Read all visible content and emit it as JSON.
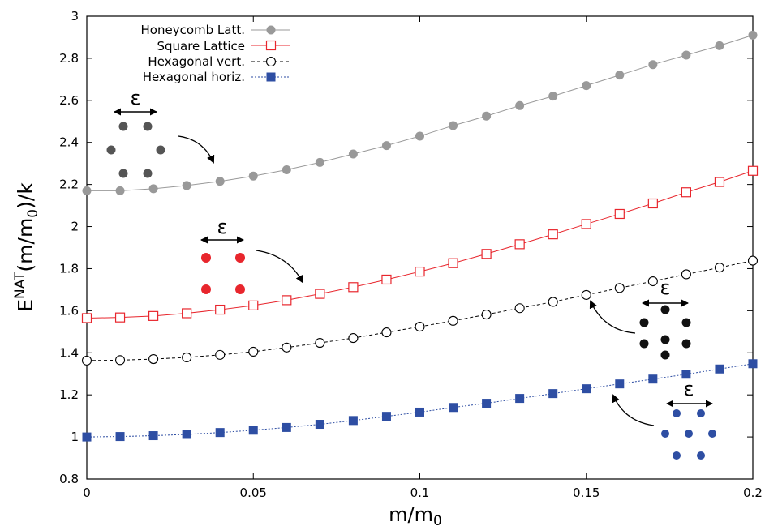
{
  "chart_data": {
    "type": "line",
    "xlabel_main": "m/m",
    "xlabel_sub": "0",
    "ylabel_parts": {
      "E": "E",
      "sup": "NAT",
      "mid": "(m/m",
      "sub": "0",
      "end": ")/k"
    },
    "xlim": [
      0,
      0.2
    ],
    "ylim": [
      0.8,
      3
    ],
    "x_ticks": [
      "0",
      "0.05",
      "0.1",
      "0.15",
      "0.2"
    ],
    "x_tick_values": [
      0,
      0.05,
      0.1,
      0.15,
      0.2
    ],
    "y_ticks": [
      "0.8",
      "1",
      "1.2",
      "1.4",
      "1.6",
      "1.8",
      "2",
      "2.2",
      "2.4",
      "2.6",
      "2.8",
      "3"
    ],
    "y_tick_values": [
      0.8,
      1,
      1.2,
      1.4,
      1.6,
      1.8,
      2,
      2.2,
      2.4,
      2.6,
      2.8,
      3
    ],
    "legend_position": "top-left",
    "x": [
      0,
      0.01,
      0.02,
      0.03,
      0.04,
      0.05,
      0.06,
      0.07,
      0.08,
      0.09,
      0.1,
      0.11,
      0.12,
      0.13,
      0.14,
      0.15,
      0.16,
      0.17,
      0.18,
      0.19,
      0.2
    ],
    "series": [
      {
        "name": "Honeycomb Latt.",
        "color": "#999999",
        "marker": "filled-circle",
        "line": "solid",
        "values": [
          2.17,
          2.17,
          2.18,
          2.195,
          2.215,
          2.24,
          2.27,
          2.305,
          2.345,
          2.385,
          2.43,
          2.48,
          2.525,
          2.575,
          2.62,
          2.67,
          2.72,
          2.77,
          2.815,
          2.86,
          2.91
        ]
      },
      {
        "name": "Square Lattice",
        "color": "#e8262d",
        "marker": "open-square",
        "line": "solid",
        "values": [
          1.565,
          1.568,
          1.575,
          1.588,
          1.605,
          1.625,
          1.65,
          1.68,
          1.712,
          1.748,
          1.786,
          1.826,
          1.87,
          1.916,
          1.963,
          2.012,
          2.06,
          2.11,
          2.163,
          2.212,
          2.265
        ]
      },
      {
        "name": "Hexagonal vert.",
        "color": "#000000",
        "marker": "open-circle",
        "line": "dashed",
        "values": [
          1.363,
          1.365,
          1.37,
          1.378,
          1.39,
          1.405,
          1.425,
          1.447,
          1.47,
          1.497,
          1.524,
          1.552,
          1.582,
          1.612,
          1.642,
          1.675,
          1.708,
          1.74,
          1.773,
          1.805,
          1.838
        ]
      },
      {
        "name": "Hexagonal horiz.",
        "color": "#2e4ea3",
        "marker": "filled-square",
        "line": "dotted",
        "values": [
          1.0,
          1.002,
          1.006,
          1.012,
          1.021,
          1.032,
          1.045,
          1.06,
          1.078,
          1.098,
          1.118,
          1.14,
          1.16,
          1.183,
          1.206,
          1.229,
          1.252,
          1.275,
          1.298,
          1.323,
          1.348
        ]
      }
    ],
    "annotations": [
      {
        "name": "honeycomb-inset",
        "label": "ε",
        "dot_color": "#555555"
      },
      {
        "name": "square-inset",
        "label": "ε",
        "dot_color": "#e8262d"
      },
      {
        "name": "hex-vert-inset",
        "label": "ε",
        "dot_color": "#111111"
      },
      {
        "name": "hex-horiz-inset",
        "label": "ε",
        "dot_color": "#2e4ea3"
      }
    ]
  }
}
